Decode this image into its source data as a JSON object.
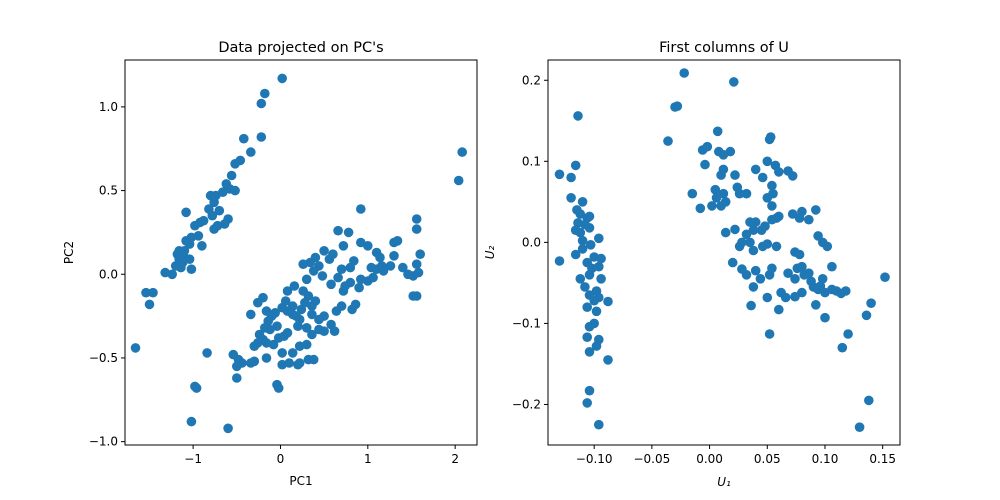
{
  "chart_data": [
    {
      "type": "scatter",
      "title": "Data projected on PC's",
      "xlabel": "PC1",
      "ylabel": "PC2",
      "xlim": [
        -1.78,
        2.25
      ],
      "ylim": [
        -1.02,
        1.28
      ],
      "xticks": [
        {
          "value": -1,
          "label": "−1"
        },
        {
          "value": 0,
          "label": "0"
        },
        {
          "value": 1,
          "label": "1"
        },
        {
          "value": 2,
          "label": "2"
        }
      ],
      "yticks": [
        {
          "value": -1.0,
          "label": "−1.0"
        },
        {
          "value": -0.5,
          "label": "−0.5"
        },
        {
          "value": 0.0,
          "label": "0.0"
        },
        {
          "value": 0.5,
          "label": "0.5"
        },
        {
          "value": 1.0,
          "label": "1.0"
        }
      ],
      "color": "#1f77b4",
      "grid": false,
      "points": [
        [
          0.02,
          1.17
        ],
        [
          -0.18,
          1.08
        ],
        [
          -0.22,
          1.02
        ],
        [
          -0.42,
          0.81
        ],
        [
          -0.22,
          0.82
        ],
        [
          -0.34,
          0.73
        ],
        [
          -0.52,
          0.66
        ],
        [
          -0.46,
          0.68
        ],
        [
          -0.56,
          0.59
        ],
        [
          -0.62,
          0.54
        ],
        [
          -0.58,
          0.51
        ],
        [
          -0.52,
          0.5
        ],
        [
          -0.66,
          0.49
        ],
        [
          -0.74,
          0.47
        ],
        [
          -0.8,
          0.47
        ],
        [
          -0.76,
          0.43
        ],
        [
          -0.82,
          0.39
        ],
        [
          -0.7,
          0.38
        ],
        [
          -0.78,
          0.35
        ],
        [
          -0.88,
          0.32
        ],
        [
          -0.6,
          0.33
        ],
        [
          -0.64,
          0.3
        ],
        [
          -0.72,
          0.29
        ],
        [
          -0.98,
          0.29
        ],
        [
          -0.92,
          0.31
        ],
        [
          -0.76,
          0.27
        ],
        [
          -1.08,
          0.37
        ],
        [
          -0.94,
          0.23
        ],
        [
          -1.02,
          0.22
        ],
        [
          -1.08,
          0.2
        ],
        [
          -1.04,
          0.18
        ],
        [
          -1.16,
          0.14
        ],
        [
          -1.1,
          0.14
        ],
        [
          -1.18,
          0.12
        ],
        [
          -0.9,
          0.17
        ],
        [
          -1.1,
          0.1
        ],
        [
          -1.16,
          0.09
        ],
        [
          -1.04,
          0.09
        ],
        [
          -1.12,
          0.07
        ],
        [
          -1.2,
          0.05
        ],
        [
          -1.14,
          0.04
        ],
        [
          -1.02,
          0.03
        ],
        [
          -1.24,
          0.0
        ],
        [
          -1.32,
          0.01
        ],
        [
          -1.54,
          -0.11
        ],
        [
          -1.46,
          -0.11
        ],
        [
          -1.5,
          -0.18
        ],
        [
          -1.66,
          -0.44
        ],
        [
          -0.96,
          -0.68
        ],
        [
          -0.98,
          -0.67
        ],
        [
          -1.02,
          -0.88
        ],
        [
          -0.6,
          -0.92
        ],
        [
          -0.84,
          -0.47
        ],
        [
          -0.54,
          -0.48
        ],
        [
          -0.48,
          -0.51
        ],
        [
          -0.44,
          -0.53
        ],
        [
          -0.5,
          -0.55
        ],
        [
          -0.5,
          -0.62
        ],
        [
          -0.34,
          -0.53
        ],
        [
          -0.3,
          -0.52
        ],
        [
          -0.16,
          -0.5
        ],
        [
          0.02,
          -0.47
        ],
        [
          -0.04,
          -0.66
        ],
        [
          -0.02,
          -0.68
        ],
        [
          0.02,
          -0.54
        ],
        [
          0.1,
          -0.53
        ],
        [
          0.2,
          -0.54
        ],
        [
          0.22,
          -0.53
        ],
        [
          0.32,
          -0.51
        ],
        [
          0.38,
          -0.51
        ],
        [
          0.14,
          -0.47
        ],
        [
          0.22,
          -0.43
        ],
        [
          0.3,
          -0.42
        ],
        [
          0.36,
          -0.36
        ],
        [
          0.5,
          -0.34
        ],
        [
          0.44,
          -0.33
        ],
        [
          0.3,
          -0.32
        ],
        [
          0.2,
          -0.31
        ],
        [
          0.62,
          -0.34
        ],
        [
          0.58,
          -0.3
        ],
        [
          0.5,
          -0.25
        ],
        [
          0.64,
          -0.22
        ],
        [
          0.7,
          -0.19
        ],
        [
          0.82,
          -0.21
        ],
        [
          0.86,
          -0.18
        ],
        [
          0.9,
          -0.08
        ],
        [
          0.8,
          -0.05
        ],
        [
          0.92,
          -0.03
        ],
        [
          1.0,
          -0.04
        ],
        [
          1.06,
          -0.02
        ],
        [
          0.72,
          -0.1
        ],
        [
          0.74,
          -0.07
        ],
        [
          0.58,
          -0.06
        ],
        [
          0.66,
          -0.02
        ],
        [
          0.7,
          0.03
        ],
        [
          0.8,
          0.04
        ],
        [
          0.84,
          0.08
        ],
        [
          0.56,
          0.09
        ],
        [
          0.6,
          0.12
        ],
        [
          0.5,
          0.14
        ],
        [
          0.4,
          0.1
        ],
        [
          0.34,
          0.07
        ],
        [
          0.26,
          0.06
        ],
        [
          0.44,
          0.05
        ],
        [
          0.38,
          0.02
        ],
        [
          0.48,
          -0.01
        ],
        [
          0.3,
          -0.03
        ],
        [
          0.16,
          -0.07
        ],
        [
          0.26,
          -0.1
        ],
        [
          0.32,
          -0.13
        ],
        [
          0.28,
          -0.17
        ],
        [
          0.36,
          -0.19
        ],
        [
          0.24,
          -0.21
        ],
        [
          0.36,
          -0.24
        ],
        [
          0.44,
          -0.27
        ],
        [
          0.22,
          -0.27
        ],
        [
          0.14,
          -0.24
        ],
        [
          0.08,
          -0.22
        ],
        [
          0.02,
          -0.2
        ],
        [
          -0.06,
          -0.23
        ],
        [
          -0.1,
          -0.25
        ],
        [
          -0.14,
          -0.28
        ],
        [
          -0.04,
          -0.31
        ],
        [
          -0.12,
          -0.33
        ],
        [
          -0.18,
          -0.32
        ],
        [
          -0.24,
          -0.36
        ],
        [
          -0.26,
          -0.41
        ],
        [
          -0.3,
          -0.43
        ],
        [
          -0.2,
          -0.39
        ],
        [
          -0.16,
          -0.41
        ],
        [
          -0.08,
          -0.42
        ],
        [
          -0.02,
          -0.38
        ],
        [
          0.04,
          -0.37
        ],
        [
          0.08,
          -0.35
        ],
        [
          -0.34,
          -0.24
        ],
        [
          -0.16,
          -0.22
        ],
        [
          -0.2,
          -0.14
        ],
        [
          -0.26,
          -0.17
        ],
        [
          0.08,
          -0.1
        ],
        [
          0.06,
          -0.16
        ],
        [
          0.14,
          -0.19
        ],
        [
          0.18,
          -0.25
        ],
        [
          0.4,
          -0.16
        ],
        [
          0.72,
          0.17
        ],
        [
          0.78,
          0.25
        ],
        [
          0.66,
          0.26
        ],
        [
          0.92,
          0.39
        ],
        [
          0.92,
          0.19
        ],
        [
          1.0,
          0.17
        ],
        [
          1.1,
          0.13
        ],
        [
          1.14,
          0.1
        ],
        [
          1.16,
          0.05
        ],
        [
          1.04,
          0.04
        ],
        [
          1.1,
          0.03
        ],
        [
          1.18,
          0.02
        ],
        [
          1.26,
          0.05
        ],
        [
          1.3,
          0.11
        ],
        [
          1.3,
          0.19
        ],
        [
          1.34,
          0.2
        ],
        [
          1.4,
          0.04
        ],
        [
          1.52,
          -0.01
        ],
        [
          1.56,
          0.06
        ],
        [
          1.58,
          0.01
        ],
        [
          1.56,
          0.27
        ],
        [
          1.56,
          0.33
        ],
        [
          1.6,
          0.12
        ],
        [
          1.56,
          -0.13
        ],
        [
          1.52,
          -0.13
        ],
        [
          1.46,
          0.0
        ],
        [
          2.04,
          0.56
        ],
        [
          2.08,
          0.73
        ]
      ]
    },
    {
      "type": "scatter",
      "title": "First columns of U",
      "xlabel": "U₁",
      "ylabel": "U₂",
      "xlim": [
        -0.14,
        0.165
      ],
      "ylim": [
        -0.25,
        0.225
      ],
      "xticks": [
        {
          "value": -0.1,
          "label": "−0.10"
        },
        {
          "value": -0.05,
          "label": "−0.05"
        },
        {
          "value": 0.0,
          "label": "0.00"
        },
        {
          "value": 0.05,
          "label": "0.05"
        },
        {
          "value": 0.1,
          "label": "0.10"
        },
        {
          "value": 0.15,
          "label": "0.15"
        }
      ],
      "yticks": [
        {
          "value": -0.2,
          "label": "−0.2"
        },
        {
          "value": -0.1,
          "label": "−0.1"
        },
        {
          "value": 0.0,
          "label": "0.0"
        },
        {
          "value": 0.1,
          "label": "0.1"
        },
        {
          "value": 0.2,
          "label": "0.2"
        }
      ],
      "color": "#1f77b4",
      "grid": false,
      "points": [
        [
          -0.114,
          0.156
        ],
        [
          -0.116,
          0.095
        ],
        [
          -0.12,
          0.08
        ],
        [
          -0.13,
          0.084
        ],
        [
          -0.12,
          0.055
        ],
        [
          -0.115,
          0.04
        ],
        [
          -0.11,
          0.05
        ],
        [
          -0.112,
          0.035
        ],
        [
          -0.106,
          0.03
        ],
        [
          -0.104,
          0.032
        ],
        [
          -0.114,
          0.024
        ],
        [
          -0.108,
          0.022
        ],
        [
          -0.116,
          0.015
        ],
        [
          -0.112,
          0.012
        ],
        [
          -0.104,
          0.018
        ],
        [
          -0.11,
          0.002
        ],
        [
          -0.096,
          0.005
        ],
        [
          -0.103,
          -0.003
        ],
        [
          -0.11,
          -0.008
        ],
        [
          -0.116,
          -0.015
        ],
        [
          -0.1,
          -0.018
        ],
        [
          -0.094,
          -0.02
        ],
        [
          -0.13,
          -0.023
        ],
        [
          -0.106,
          -0.025
        ],
        [
          -0.102,
          -0.032
        ],
        [
          -0.096,
          -0.03
        ],
        [
          -0.112,
          -0.045
        ],
        [
          -0.104,
          -0.04
        ],
        [
          -0.094,
          -0.045
        ],
        [
          -0.108,
          -0.055
        ],
        [
          -0.098,
          -0.06
        ],
        [
          -0.104,
          -0.065
        ],
        [
          -0.096,
          -0.068
        ],
        [
          -0.088,
          -0.073
        ],
        [
          -0.1,
          -0.072
        ],
        [
          -0.106,
          -0.08
        ],
        [
          -0.098,
          -0.085
        ],
        [
          -0.1,
          -0.1
        ],
        [
          -0.104,
          -0.104
        ],
        [
          -0.106,
          -0.117
        ],
        [
          -0.096,
          -0.12
        ],
        [
          -0.104,
          -0.135
        ],
        [
          -0.098,
          -0.128
        ],
        [
          -0.088,
          -0.145
        ],
        [
          -0.104,
          -0.183
        ],
        [
          -0.106,
          -0.198
        ],
        [
          -0.096,
          -0.225
        ],
        [
          -0.022,
          0.209
        ],
        [
          -0.028,
          0.168
        ],
        [
          -0.03,
          0.167
        ],
        [
          -0.036,
          0.125
        ],
        [
          0.021,
          0.198
        ],
        [
          0.007,
          0.137
        ],
        [
          -0.006,
          0.114
        ],
        [
          -0.002,
          0.118
        ],
        [
          -0.004,
          0.096
        ],
        [
          0.008,
          0.112
        ],
        [
          0.012,
          0.108
        ],
        [
          0.018,
          0.112
        ],
        [
          0.046,
          0.08
        ],
        [
          0.052,
          0.127
        ],
        [
          0.053,
          0.13
        ],
        [
          0.05,
          0.1
        ],
        [
          0.057,
          0.095
        ],
        [
          0.06,
          0.087
        ],
        [
          0.068,
          0.088
        ],
        [
          0.072,
          0.082
        ],
        [
          0.054,
          0.07
        ],
        [
          0.055,
          0.06
        ],
        [
          0.04,
          0.09
        ],
        [
          0.022,
          0.083
        ],
        [
          0.024,
          0.068
        ],
        [
          0.026,
          0.06
        ],
        [
          0.012,
          0.09
        ],
        [
          0.01,
          0.083
        ],
        [
          0.005,
          0.065
        ],
        [
          0.012,
          0.06
        ],
        [
          0.006,
          0.055
        ],
        [
          0.014,
          0.05
        ],
        [
          0.01,
          0.045
        ],
        [
          -0.015,
          0.06
        ],
        [
          -0.008,
          0.042
        ],
        [
          0.002,
          0.045
        ],
        [
          0.032,
          0.06
        ],
        [
          0.05,
          0.055
        ],
        [
          0.054,
          0.045
        ],
        [
          0.035,
          0.025
        ],
        [
          0.04,
          0.025
        ],
        [
          0.048,
          0.02
        ],
        [
          0.054,
          0.028
        ],
        [
          0.058,
          0.03
        ],
        [
          0.06,
          0.032
        ],
        [
          0.072,
          0.035
        ],
        [
          0.08,
          0.038
        ],
        [
          0.086,
          0.028
        ],
        [
          0.092,
          0.04
        ],
        [
          0.078,
          0.03
        ],
        [
          0.038,
          0.015
        ],
        [
          0.045,
          0.015
        ],
        [
          0.032,
          0.01
        ],
        [
          0.014,
          0.012
        ],
        [
          0.022,
          0.016
        ],
        [
          0.028,
          0.0
        ],
        [
          0.035,
          0.0
        ],
        [
          0.026,
          -0.005
        ],
        [
          0.046,
          -0.005
        ],
        [
          0.05,
          -0.002
        ],
        [
          0.038,
          -0.01
        ],
        [
          0.058,
          -0.005
        ],
        [
          0.074,
          -0.012
        ],
        [
          0.078,
          -0.015
        ],
        [
          0.08,
          -0.03
        ],
        [
          0.076,
          -0.032
        ],
        [
          0.068,
          -0.038
        ],
        [
          0.074,
          -0.045
        ],
        [
          0.082,
          -0.04
        ],
        [
          0.086,
          -0.038
        ],
        [
          0.094,
          0.008
        ],
        [
          0.098,
          0.0
        ],
        [
          0.102,
          -0.005
        ],
        [
          0.106,
          -0.03
        ],
        [
          0.098,
          -0.045
        ],
        [
          0.088,
          -0.048
        ],
        [
          0.09,
          -0.055
        ],
        [
          0.094,
          -0.058
        ],
        [
          0.096,
          -0.054
        ],
        [
          0.1,
          -0.062
        ],
        [
          0.106,
          -0.058
        ],
        [
          0.11,
          -0.06
        ],
        [
          0.114,
          -0.063
        ],
        [
          0.118,
          -0.06
        ],
        [
          0.08,
          -0.062
        ],
        [
          0.074,
          -0.067
        ],
        [
          0.066,
          -0.068
        ],
        [
          0.062,
          -0.062
        ],
        [
          0.052,
          -0.04
        ],
        [
          0.038,
          -0.055
        ],
        [
          0.032,
          -0.04
        ],
        [
          0.028,
          -0.033
        ],
        [
          0.02,
          -0.025
        ],
        [
          0.04,
          -0.035
        ],
        [
          0.044,
          -0.045
        ],
        [
          0.054,
          -0.032
        ],
        [
          0.036,
          -0.078
        ],
        [
          0.05,
          -0.068
        ],
        [
          0.06,
          -0.083
        ],
        [
          0.052,
          -0.113
        ],
        [
          0.1,
          -0.093
        ],
        [
          0.092,
          -0.077
        ],
        [
          0.115,
          -0.13
        ],
        [
          0.12,
          -0.113
        ],
        [
          0.13,
          -0.228
        ],
        [
          0.136,
          -0.09
        ],
        [
          0.14,
          -0.075
        ],
        [
          0.138,
          -0.195
        ],
        [
          0.152,
          -0.043
        ]
      ]
    }
  ]
}
